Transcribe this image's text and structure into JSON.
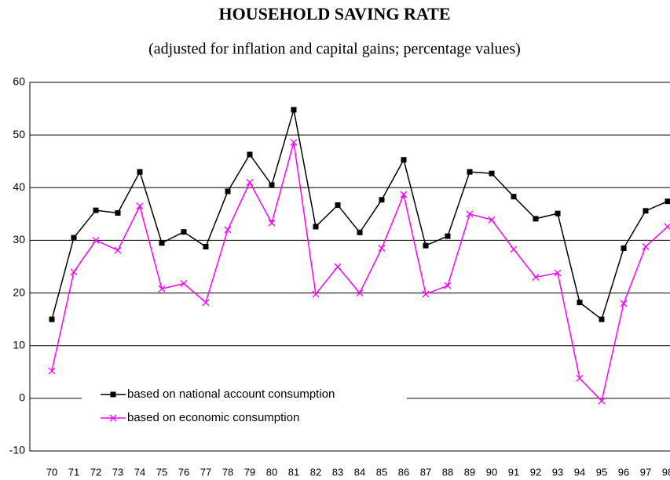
{
  "chart_data": {
    "type": "line",
    "title": "HOUSEHOLD SAVING RATE",
    "subtitle": "(adjusted for inflation and capital gains; percentage values)",
    "categories": [
      "70",
      "71",
      "72",
      "73",
      "74",
      "75",
      "76",
      "77",
      "78",
      "79",
      "80",
      "81",
      "82",
      "83",
      "84",
      "85",
      "86",
      "87",
      "88",
      "89",
      "90",
      "91",
      "92",
      "93",
      "94",
      "95",
      "96",
      "97",
      "98"
    ],
    "series": [
      {
        "name": "based on national account consumption",
        "color": "#000000",
        "marker": "square",
        "values": [
          15,
          30.5,
          35.7,
          35.2,
          43,
          29.5,
          31.6,
          28.8,
          39.3,
          46.3,
          40.5,
          54.8,
          32.6,
          36.7,
          31.5,
          37.7,
          45.3,
          29,
          30.8,
          43,
          42.7,
          38.3,
          34.1,
          35.1,
          18.2,
          15,
          28.5,
          35.6,
          37.4
        ]
      },
      {
        "name": "based on economic consumption",
        "color": "#ff00ff",
        "marker": "x",
        "values": [
          5.2,
          24,
          30,
          28.1,
          36.5,
          20.8,
          21.8,
          18.2,
          32,
          41,
          33.3,
          48.6,
          19.8,
          25,
          20,
          28.5,
          38.7,
          19.8,
          21.4,
          35,
          33.9,
          28.3,
          23,
          23.8,
          3.8,
          -0.5,
          18,
          28.8,
          32.6
        ]
      }
    ],
    "ylim": [
      -10,
      60
    ],
    "yticks": [
      -10,
      0,
      10,
      20,
      30,
      40,
      50,
      60
    ],
    "grid": true
  }
}
